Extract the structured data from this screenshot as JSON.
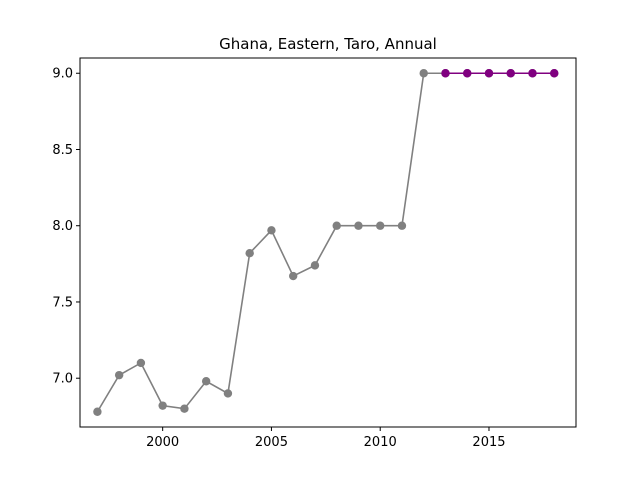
{
  "chart_data": {
    "type": "line",
    "title": "Ghana, Eastern, Taro, Annual",
    "xlabel": "",
    "ylabel": "",
    "xlim": [
      1996.2,
      2019.0
    ],
    "ylim": [
      6.68,
      9.1
    ],
    "x_ticks": [
      2000,
      2005,
      2010,
      2015
    ],
    "y_ticks": [
      7.0,
      7.5,
      8.0,
      8.5,
      9.0
    ],
    "x_tick_labels": [
      "2000",
      "2005",
      "2010",
      "2015"
    ],
    "y_tick_labels": [
      "7.0",
      "7.5",
      "8.0",
      "8.5",
      "9.0"
    ],
    "grid": false,
    "series": [
      {
        "color": "#808080",
        "x": [
          1997,
          1998,
          1999,
          2000,
          2001,
          2002,
          2003,
          2004,
          2005,
          2006,
          2007,
          2008,
          2009,
          2010,
          2011,
          2012,
          2013,
          2014,
          2015,
          2016,
          2017,
          2018
        ],
        "values": [
          6.78,
          7.02,
          7.1,
          6.82,
          6.8,
          6.98,
          6.9,
          7.82,
          7.97,
          7.67,
          7.74,
          8.0,
          8.0,
          8.0,
          8.0,
          9.0,
          9.0,
          9.0,
          9.0,
          9.0,
          9.0,
          9.0
        ]
      },
      {
        "color": "#800080",
        "x": [
          2013,
          2014,
          2015,
          2016,
          2017,
          2018
        ],
        "values": [
          9.0,
          9.0,
          9.0,
          9.0,
          9.0,
          9.0
        ]
      }
    ]
  }
}
